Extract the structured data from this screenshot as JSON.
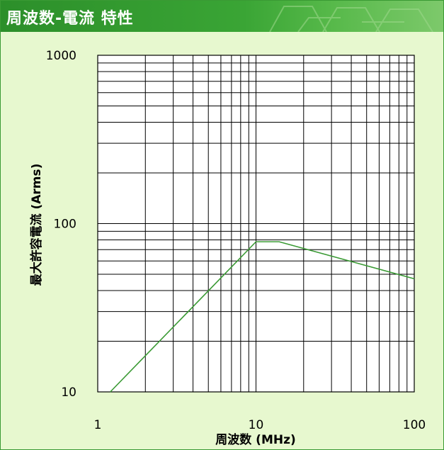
{
  "title": "周波数-電流 特性",
  "colors": {
    "title_bg": "#2c8f2a",
    "panel_bg": "#e7f8cf",
    "plot_bg": "#ffffff",
    "grid": "#000000",
    "line": "#3a9a34"
  },
  "chart_data": {
    "type": "line",
    "xlabel": "周波数 (MHz)",
    "ylabel": "最大許容電流 (Arms)",
    "xscale": "log",
    "yscale": "log",
    "xlim": [
      1,
      100
    ],
    "ylim": [
      10,
      1000
    ],
    "x_ticks": [
      "1",
      "10",
      "100"
    ],
    "y_ticks": [
      "10",
      "100",
      "1000"
    ],
    "grid": true,
    "series": [
      {
        "x": [
          1.2,
          10,
          14,
          100
        ],
        "y": [
          10,
          78,
          78,
          47
        ]
      }
    ]
  }
}
